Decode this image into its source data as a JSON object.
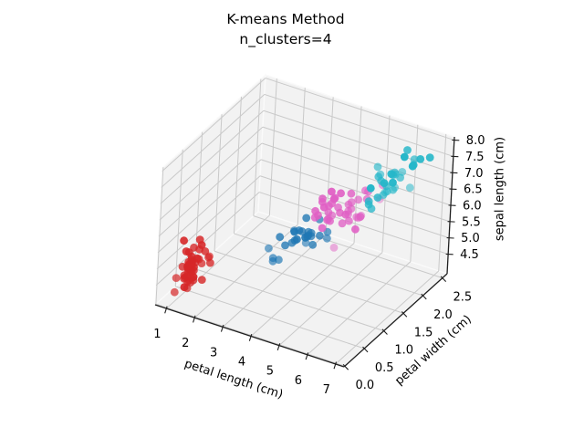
{
  "title": {
    "line1": "K-means Method",
    "line2": "n_clusters=4"
  },
  "colors": {
    "background": "#ffffff",
    "pane": "#f2f2f2",
    "pane_edge": "#fafafa",
    "grid": "#c9c9c9",
    "axis_line": "#1f1f1f",
    "text": "#000000",
    "cluster_red": "#d62728",
    "cluster_blue": "#1f77b4",
    "cluster_pink": "#e05fc4",
    "cluster_cyan": "#26b7c9"
  },
  "chart_data": {
    "type": "scatter",
    "projection": "3d",
    "view": {
      "elev_deg": 30,
      "azim_deg": -60
    },
    "title": "K-means Method\nn_clusters=4",
    "xlabel": "petal length (cm)",
    "ylabel": "petal width (cm)",
    "zlabel": "sepal length (cm)",
    "xlim": [
      0.6,
      7.3
    ],
    "ylim": [
      -0.02,
      2.62
    ],
    "zlim": [
      3.9,
      8.1
    ],
    "xticks": [
      1,
      2,
      3,
      4,
      5,
      6,
      7
    ],
    "yticks": [
      0.0,
      0.5,
      1.0,
      1.5,
      2.0,
      2.5
    ],
    "zticks": [
      4.5,
      5.0,
      5.5,
      6.0,
      6.5,
      7.0,
      7.5,
      8.0
    ],
    "grid": true,
    "legend": false,
    "marker_radius_px": 4.4,
    "clusters": [
      {
        "name": "cluster-0-red",
        "color": "#d62728",
        "points": [
          [
            1.4,
            0.2,
            5.1
          ],
          [
            1.4,
            0.2,
            4.9
          ],
          [
            1.3,
            0.2,
            4.7
          ],
          [
            1.5,
            0.2,
            4.6
          ],
          [
            1.4,
            0.2,
            5.0
          ],
          [
            1.7,
            0.4,
            5.4
          ],
          [
            1.4,
            0.3,
            4.6
          ],
          [
            1.5,
            0.2,
            5.0
          ],
          [
            1.4,
            0.2,
            4.4
          ],
          [
            1.5,
            0.1,
            4.9
          ],
          [
            1.5,
            0.2,
            5.4
          ],
          [
            1.6,
            0.2,
            4.8
          ],
          [
            1.4,
            0.1,
            4.8
          ],
          [
            1.1,
            0.1,
            4.3
          ],
          [
            1.2,
            0.2,
            5.8
          ],
          [
            1.5,
            0.4,
            5.7
          ],
          [
            1.3,
            0.4,
            5.4
          ],
          [
            1.4,
            0.3,
            5.1
          ],
          [
            1.7,
            0.3,
            5.7
          ],
          [
            1.5,
            0.3,
            5.1
          ],
          [
            1.7,
            0.2,
            5.4
          ],
          [
            1.5,
            0.4,
            5.1
          ],
          [
            1.0,
            0.2,
            4.6
          ],
          [
            1.7,
            0.5,
            5.1
          ],
          [
            1.9,
            0.2,
            4.8
          ],
          [
            1.6,
            0.2,
            5.0
          ],
          [
            1.6,
            0.4,
            5.0
          ],
          [
            1.5,
            0.2,
            5.2
          ],
          [
            1.4,
            0.2,
            5.2
          ],
          [
            1.6,
            0.2,
            4.7
          ],
          [
            1.6,
            0.2,
            4.8
          ],
          [
            1.5,
            0.4,
            5.4
          ],
          [
            1.5,
            0.1,
            5.2
          ],
          [
            1.4,
            0.2,
            5.5
          ],
          [
            1.5,
            0.2,
            4.9
          ],
          [
            1.2,
            0.2,
            5.0
          ],
          [
            1.3,
            0.2,
            5.5
          ],
          [
            1.4,
            0.1,
            4.9
          ],
          [
            1.3,
            0.2,
            4.4
          ],
          [
            1.5,
            0.2,
            5.1
          ],
          [
            1.3,
            0.3,
            5.0
          ],
          [
            1.3,
            0.3,
            4.5
          ],
          [
            1.3,
            0.2,
            4.4
          ],
          [
            1.6,
            0.6,
            5.0
          ],
          [
            1.9,
            0.4,
            5.1
          ],
          [
            1.4,
            0.3,
            4.8
          ],
          [
            1.6,
            0.2,
            5.1
          ],
          [
            1.4,
            0.2,
            4.6
          ],
          [
            1.5,
            0.2,
            5.3
          ],
          [
            1.4,
            0.2,
            5.0
          ]
        ]
      },
      {
        "name": "cluster-1-blue",
        "color": "#1f77b4",
        "points": [
          [
            4.0,
            1.3,
            5.5
          ],
          [
            4.5,
            1.3,
            5.7
          ],
          [
            3.3,
            1.0,
            4.9
          ],
          [
            3.9,
            1.4,
            5.2
          ],
          [
            3.5,
            1.0,
            5.0
          ],
          [
            4.2,
            1.5,
            5.9
          ],
          [
            4.0,
            1.0,
            6.0
          ],
          [
            3.6,
            1.3,
            5.6
          ],
          [
            4.5,
            1.5,
            5.6
          ],
          [
            4.1,
            1.0,
            5.8
          ],
          [
            3.9,
            1.1,
            5.6
          ],
          [
            4.0,
            1.3,
            6.1
          ],
          [
            3.5,
            1.0,
            5.7
          ],
          [
            3.8,
            1.1,
            5.5
          ],
          [
            3.7,
            1.0,
            5.5
          ],
          [
            3.9,
            1.2,
            5.8
          ],
          [
            4.5,
            1.5,
            5.4
          ],
          [
            4.1,
            1.3,
            5.6
          ],
          [
            4.0,
            1.3,
            5.5
          ],
          [
            4.4,
            1.2,
            5.5
          ],
          [
            4.0,
            1.2,
            5.8
          ],
          [
            3.3,
            1.0,
            5.0
          ],
          [
            4.2,
            1.3,
            5.6
          ],
          [
            4.2,
            1.2,
            5.7
          ],
          [
            4.2,
            1.3,
            5.7
          ],
          [
            3.0,
            1.1,
            5.1
          ],
          [
            4.1,
            1.3,
            5.7
          ]
        ]
      },
      {
        "name": "cluster-2-pink",
        "color": "#e05fc4",
        "points": [
          [
            4.7,
            1.4,
            7.0
          ],
          [
            4.5,
            1.5,
            6.4
          ],
          [
            4.9,
            1.5,
            6.9
          ],
          [
            4.6,
            1.5,
            6.5
          ],
          [
            4.7,
            1.6,
            6.3
          ],
          [
            4.6,
            1.3,
            6.6
          ],
          [
            4.7,
            1.4,
            6.1
          ],
          [
            4.4,
            1.4,
            6.7
          ],
          [
            4.5,
            1.5,
            6.2
          ],
          [
            4.8,
            1.8,
            5.9
          ],
          [
            4.9,
            1.5,
            6.3
          ],
          [
            4.7,
            1.2,
            6.1
          ],
          [
            4.3,
            1.3,
            6.4
          ],
          [
            4.4,
            1.4,
            6.6
          ],
          [
            4.8,
            1.4,
            6.8
          ],
          [
            5.0,
            1.7,
            6.7
          ],
          [
            4.5,
            1.5,
            6.0
          ],
          [
            5.1,
            1.6,
            6.0
          ],
          [
            4.5,
            1.6,
            6.0
          ],
          [
            4.7,
            1.5,
            6.7
          ],
          [
            4.4,
            1.3,
            6.3
          ],
          [
            4.6,
            1.4,
            6.1
          ],
          [
            4.3,
            1.3,
            6.2
          ],
          [
            5.1,
            1.9,
            5.8
          ],
          [
            4.5,
            1.7,
            4.9
          ],
          [
            5.1,
            2.0,
            6.5
          ],
          [
            5.3,
            1.9,
            6.4
          ],
          [
            5.0,
            2.0,
            5.7
          ],
          [
            5.1,
            2.4,
            5.8
          ],
          [
            5.3,
            2.3,
            6.4
          ],
          [
            5.0,
            1.5,
            6.0
          ],
          [
            4.9,
            2.0,
            5.6
          ],
          [
            4.9,
            1.8,
            6.3
          ],
          [
            4.8,
            1.8,
            6.2
          ],
          [
            4.9,
            1.8,
            6.1
          ],
          [
            5.1,
            1.5,
            6.3
          ],
          [
            5.6,
            1.4,
            6.1
          ],
          [
            4.8,
            1.8,
            6.0
          ],
          [
            5.1,
            1.9,
            5.8
          ],
          [
            5.0,
            1.9,
            6.3
          ],
          [
            5.2,
            2.0,
            6.5
          ],
          [
            5.1,
            1.8,
            5.9
          ]
        ]
      },
      {
        "name": "cluster-3-cyan",
        "color": "#26b7c9",
        "points": [
          [
            6.0,
            2.5,
            6.3
          ],
          [
            5.9,
            2.1,
            7.1
          ],
          [
            5.6,
            1.8,
            6.3
          ],
          [
            5.8,
            2.2,
            6.5
          ],
          [
            6.6,
            2.1,
            7.6
          ],
          [
            6.3,
            1.8,
            7.3
          ],
          [
            5.8,
            1.8,
            6.7
          ],
          [
            6.1,
            2.5,
            7.2
          ],
          [
            5.5,
            2.1,
            6.8
          ],
          [
            5.5,
            1.8,
            6.5
          ],
          [
            6.7,
            2.2,
            7.7
          ],
          [
            6.9,
            2.3,
            7.7
          ],
          [
            5.7,
            2.3,
            6.9
          ],
          [
            6.7,
            2.0,
            7.7
          ],
          [
            5.7,
            2.1,
            6.7
          ],
          [
            6.0,
            1.8,
            7.2
          ],
          [
            5.6,
            2.1,
            6.4
          ],
          [
            5.8,
            1.6,
            7.2
          ],
          [
            6.1,
            1.9,
            7.4
          ],
          [
            6.4,
            2.0,
            7.9
          ],
          [
            5.6,
            2.2,
            6.4
          ],
          [
            6.1,
            2.3,
            7.7
          ],
          [
            5.6,
            2.4,
            6.3
          ],
          [
            5.5,
            1.8,
            6.4
          ],
          [
            5.4,
            2.1,
            6.9
          ],
          [
            5.6,
            2.4,
            6.7
          ],
          [
            5.1,
            2.3,
            6.9
          ],
          [
            5.9,
            2.3,
            6.8
          ],
          [
            5.7,
            2.5,
            6.7
          ],
          [
            5.2,
            2.3,
            6.7
          ],
          [
            5.4,
            2.3,
            6.2
          ]
        ]
      }
    ]
  }
}
